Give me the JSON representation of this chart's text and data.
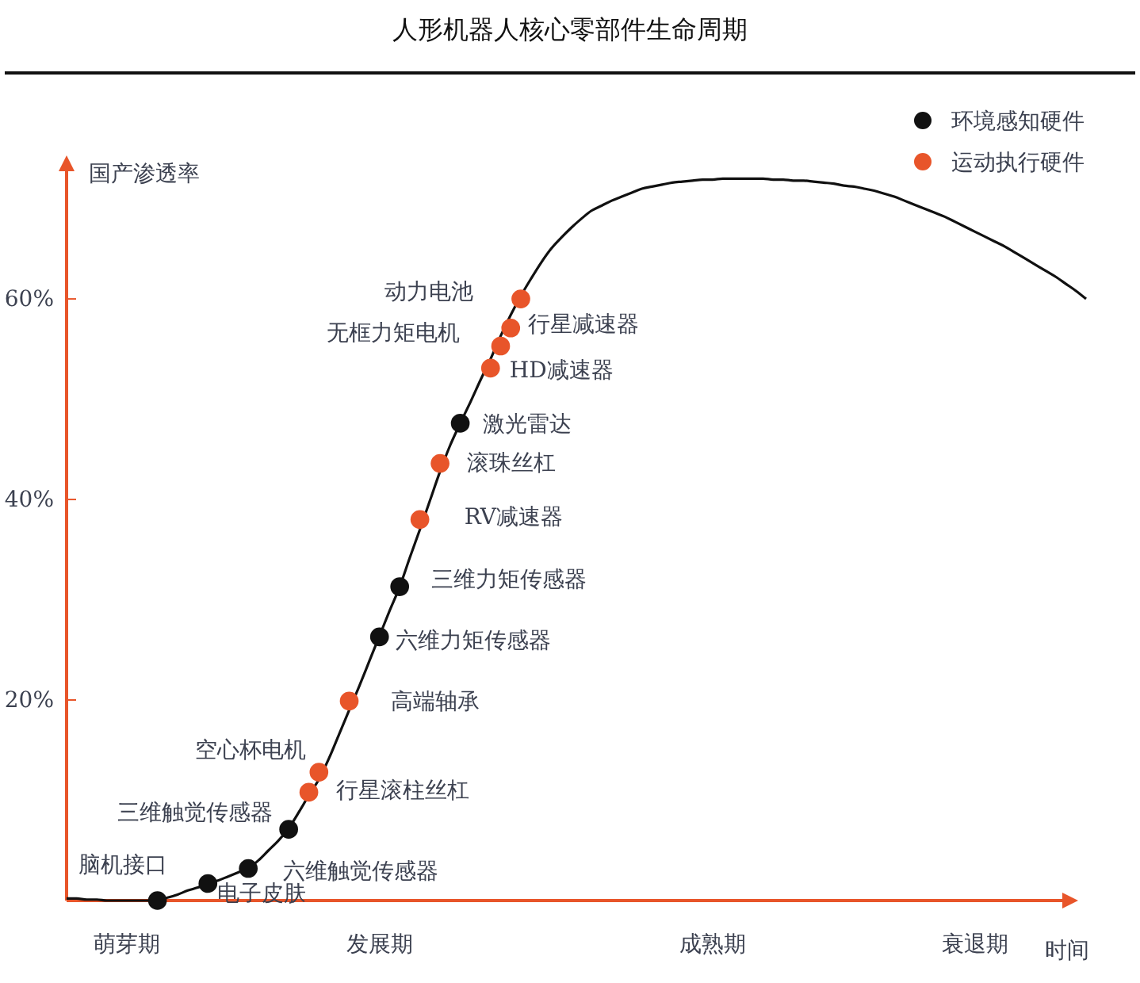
{
  "chart_data": {
    "type": "scatter",
    "title": "人形机器人核心零部件生命周期",
    "xlabel": "时间",
    "ylabel": "国产渗透率",
    "categories": [
      null,
      null,
      null,
      null,
      null,
      null,
      "萌芽期",
      null,
      null,
      null,
      null,
      null,
      null,
      null,
      null,
      null,
      null,
      null,
      null,
      null,
      null,
      null,
      null,
      null,
      null,
      null,
      null,
      null,
      null,
      null,
      null,
      "发展期",
      null,
      null,
      null,
      null,
      null,
      null,
      null,
      null,
      null,
      null,
      null,
      null,
      null,
      null,
      null,
      null,
      null,
      null,
      null,
      null,
      null,
      null,
      null,
      null,
      null,
      null,
      null,
      null,
      null,
      null,
      null,
      null,
      "成熟期",
      null,
      null,
      null,
      null,
      null,
      null,
      null,
      null,
      null,
      null,
      null,
      null,
      null,
      null,
      null,
      null,
      null,
      null,
      null,
      null,
      null,
      null,
      null,
      null,
      null,
      "衰退期",
      null,
      null,
      null,
      null,
      null,
      null,
      null,
      null,
      null,
      null,
      null
    ],
    "ylim": [
      0,
      74
    ],
    "yticks": [
      {
        "value": 20,
        "label": "20%"
      },
      {
        "value": 40,
        "label": "40%"
      },
      {
        "value": 60,
        "label": "60%"
      }
    ],
    "grid": false,
    "legend": "top right",
    "marker": "circle",
    "series": [
      {
        "type": "line",
        "color": "#111111",
        "marker": "none",
        "values": [
          0.2,
          0.2,
          0.1,
          0.1,
          0,
          0,
          0,
          0,
          0,
          0.1,
          0.3,
          0.6,
          1,
          1.3,
          1.7,
          2,
          2.4,
          2.8,
          3.2,
          4,
          5,
          6,
          7.2,
          8.8,
          10.5,
          12.1,
          14.2,
          16.6,
          19,
          21.4,
          23.9,
          26.4,
          28.9,
          31.3,
          34.2,
          37,
          39.9,
          42.8,
          45.4,
          47.6,
          49.7,
          51.9,
          54,
          56.3,
          58.4,
          60.3,
          62,
          63.6,
          65,
          66.1,
          67.1,
          68,
          68.8,
          69.3,
          69.8,
          70.2,
          70.6,
          71,
          71.2,
          71.4,
          71.6,
          71.7,
          71.8,
          71.9,
          71.9,
          72,
          72,
          72,
          72,
          72,
          71.9,
          71.9,
          71.8,
          71.8,
          71.7,
          71.6,
          71.5,
          71.3,
          71.2,
          71,
          70.8,
          70.5,
          70.2,
          69.8,
          69.4,
          69,
          68.6,
          68.2,
          67.7,
          67.2,
          66.7,
          66.2,
          65.7,
          65.2,
          64.6,
          64,
          63.4,
          62.8,
          62.2,
          61.5,
          60.8,
          60
        ]
      },
      {
        "name": "环境感知硬件",
        "color": "#111111",
        "values": [
          null,
          null,
          null,
          null,
          null,
          null,
          null,
          null,
          null,
          0,
          null,
          null,
          null,
          null,
          1.7,
          null,
          null,
          null,
          3.2,
          null,
          null,
          null,
          7.1,
          null,
          null,
          null,
          null,
          null,
          null,
          null,
          null,
          26.3,
          null,
          31.3,
          null,
          null,
          null,
          null,
          null,
          47.6,
          null,
          null,
          null,
          null,
          null,
          null,
          null,
          null,
          null,
          null,
          null,
          null,
          null,
          null,
          null,
          null,
          null,
          null,
          null,
          null,
          null,
          null,
          null,
          null,
          null,
          null,
          null,
          null,
          null,
          null,
          null,
          null,
          null,
          null,
          null,
          null,
          null,
          null,
          null,
          null,
          null,
          null,
          null,
          null,
          null,
          null,
          null,
          null,
          null,
          null,
          null,
          null,
          null,
          null,
          null,
          null,
          null,
          null,
          null,
          null,
          null,
          null
        ]
      },
      {
        "name": "运动执行硬件",
        "color": "#e8552a",
        "values": [
          null,
          null,
          null,
          null,
          null,
          null,
          null,
          null,
          null,
          null,
          null,
          null,
          null,
          null,
          null,
          null,
          null,
          null,
          null,
          null,
          null,
          null,
          null,
          null,
          10.8,
          12.8,
          null,
          null,
          19.9,
          null,
          null,
          null,
          null,
          null,
          null,
          38,
          null,
          43.6,
          null,
          null,
          null,
          null,
          53.1,
          55.3,
          57.1,
          60,
          null,
          null,
          null,
          null,
          null,
          null,
          null,
          null,
          null,
          null,
          null,
          null,
          null,
          null,
          null,
          null,
          null,
          null,
          null,
          null,
          null,
          null,
          null,
          null,
          null,
          null,
          null,
          null,
          null,
          null,
          null,
          null,
          null,
          null,
          null,
          null,
          null,
          null,
          null,
          null,
          null,
          null,
          null,
          null,
          null,
          null,
          null,
          null,
          null,
          null,
          null,
          null,
          null,
          null,
          null,
          null
        ]
      }
    ],
    "annotations": [
      "脑机接口",
      "电子皮肤",
      "六维触觉传感器",
      "三维触觉传感器",
      "空心杯电机",
      "行星滚柱丝杠",
      "高端轴承",
      "六维力矩传感器",
      "三维力矩传感器",
      "RV减速器",
      "滚珠丝杠",
      "激光雷达",
      "HD减速器",
      "无框力矩电机",
      "行星减速器",
      "动力电池"
    ]
  }
}
